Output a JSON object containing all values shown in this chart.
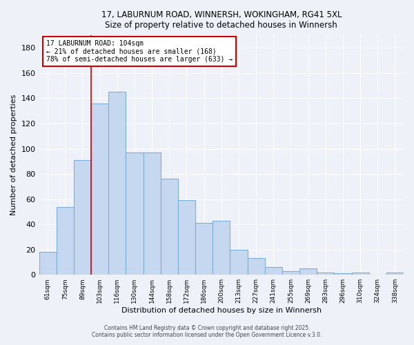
{
  "title": "17, LABURNUM ROAD, WINNERSH, WOKINGHAM, RG41 5XL",
  "subtitle": "Size of property relative to detached houses in Winnersh",
  "xlabel": "Distribution of detached houses by size in Winnersh",
  "ylabel": "Number of detached properties",
  "categories": [
    "61sqm",
    "75sqm",
    "89sqm",
    "103sqm",
    "116sqm",
    "130sqm",
    "144sqm",
    "158sqm",
    "172sqm",
    "186sqm",
    "200sqm",
    "213sqm",
    "227sqm",
    "241sqm",
    "255sqm",
    "269sqm",
    "283sqm",
    "296sqm",
    "310sqm",
    "324sqm",
    "338sqm"
  ],
  "values": [
    18,
    54,
    91,
    136,
    145,
    97,
    97,
    76,
    59,
    41,
    43,
    20,
    13,
    6,
    3,
    5,
    2,
    1,
    2,
    0,
    2
  ],
  "bar_color": "#c5d8f0",
  "bar_edge_color": "#7bafd4",
  "annotation_text": "17 LABURNUM ROAD: 104sqm\n← 21% of detached houses are smaller (168)\n78% of semi-detached houses are larger (633) →",
  "annotation_box_color": "#ffffff",
  "annotation_box_edge_color": "#cc0000",
  "property_line_index": 3,
  "ylim": [
    0,
    190
  ],
  "yticks": [
    0,
    20,
    40,
    60,
    80,
    100,
    120,
    140,
    160,
    180
  ],
  "footer1": "Contains HM Land Registry data © Crown copyright and database right 2025.",
  "footer2": "Contains public sector information licensed under the Open Government Licence v.3.0.",
  "background_color": "#eef2f8",
  "plot_background_color": "#eef2f8",
  "grid_color": "#ffffff",
  "line_color": "#cc0000"
}
